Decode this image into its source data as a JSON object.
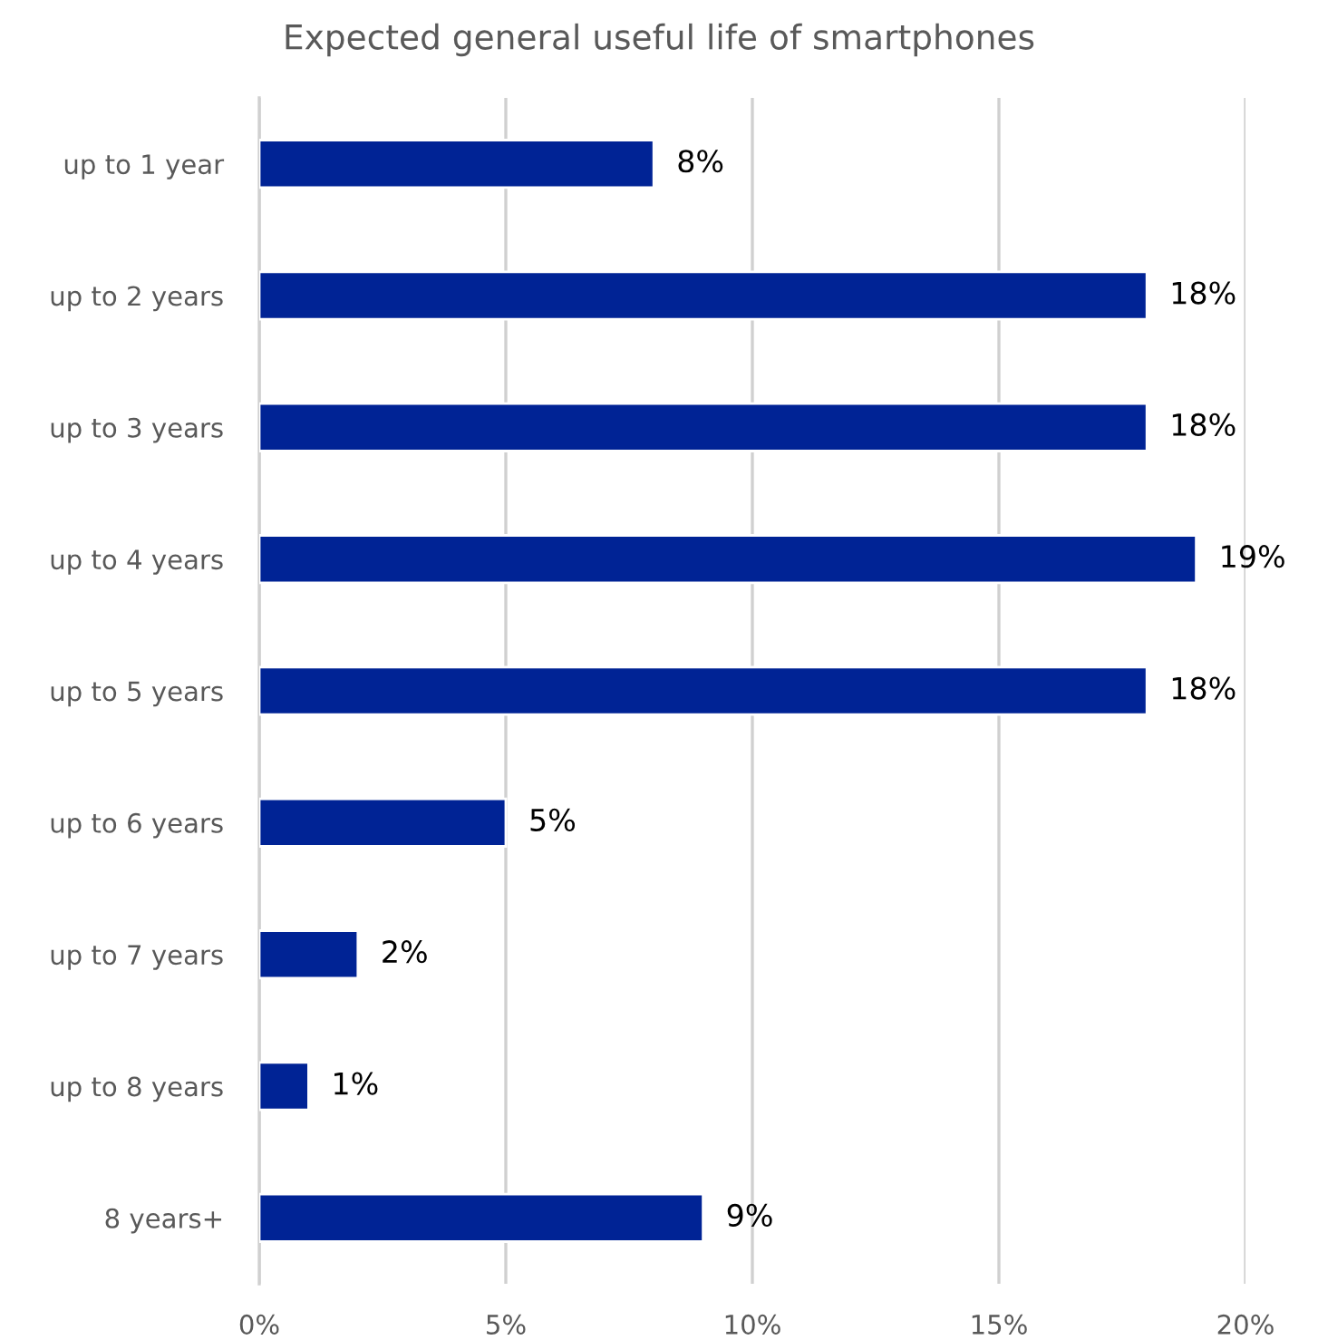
{
  "chart_data": {
    "type": "bar",
    "orientation": "horizontal",
    "title": "Expected general useful life of smartphones",
    "categories": [
      "up to 1 year",
      "up to 2 years",
      "up to 3 years",
      "up to 4 years",
      "up to 5 years",
      "up to 6 years",
      "up to 7 years",
      "up to 8 years",
      "8 years+"
    ],
    "values": [
      8,
      18,
      18,
      19,
      18,
      5,
      2,
      1,
      9
    ],
    "value_labels": [
      "8%",
      "18%",
      "18%",
      "19%",
      "18%",
      "5%",
      "2%",
      "1%",
      "9%"
    ],
    "color": "#002395",
    "xlim": [
      0,
      20
    ],
    "xticks": [
      {
        "value": 0,
        "label": "0%"
      },
      {
        "value": 5,
        "label": "5%"
      },
      {
        "value": 10,
        "label": "10%"
      },
      {
        "value": 15,
        "label": "15%"
      },
      {
        "value": 20,
        "label": "20%"
      }
    ],
    "grid": "x"
  }
}
